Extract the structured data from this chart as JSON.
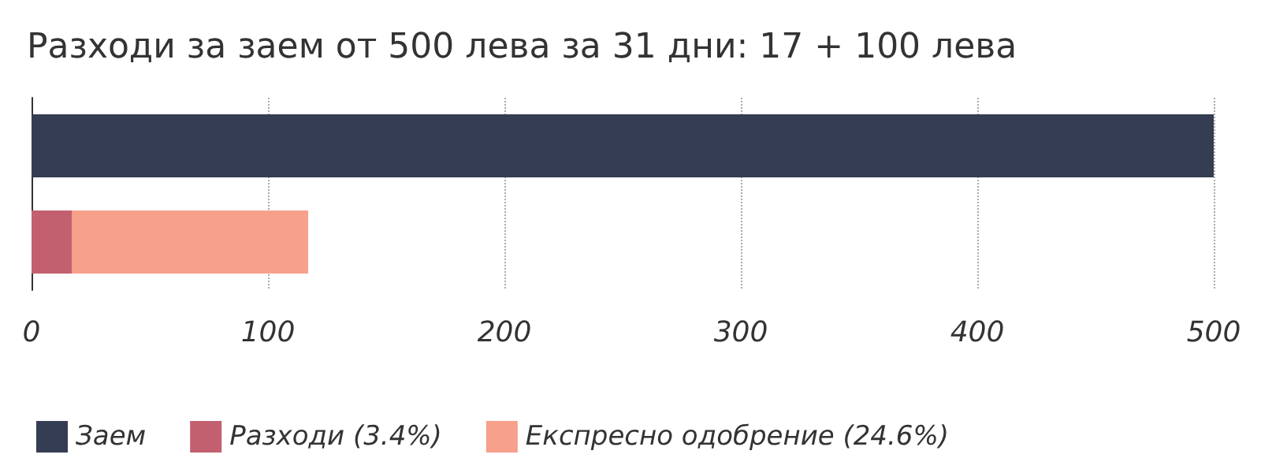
{
  "chart_data": {
    "type": "bar",
    "orientation": "horizontal",
    "stacked": true,
    "title": "Разходи за заем от 500 лева за 31 дни: 17 + 100 лева",
    "categories": [
      null,
      null
    ],
    "series": [
      {
        "name": "Заем",
        "color": "#353d52",
        "values": [
          500,
          null
        ]
      },
      {
        "name": "Разходи (3.4%)",
        "color": "#c2606f",
        "values": [
          null,
          17
        ]
      },
      {
        "name": "Експресно одобрение (24.6%)",
        "color": "#f7a08b",
        "values": [
          null,
          100
        ]
      }
    ],
    "xlim": [
      0,
      500
    ],
    "xticks": [
      0,
      100,
      200,
      300,
      400,
      500
    ],
    "grid": "x",
    "legend": "bottom left"
  }
}
